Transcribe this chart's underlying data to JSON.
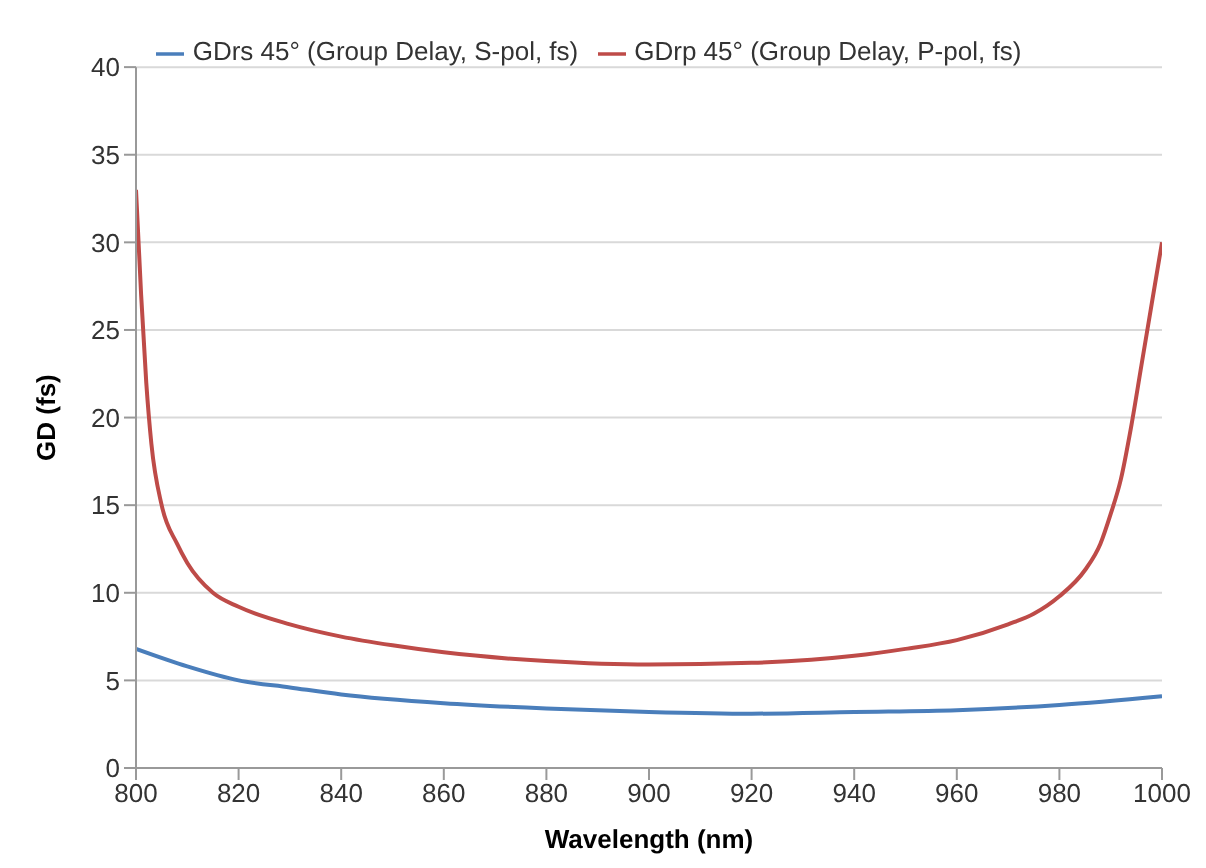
{
  "chart_data": {
    "type": "line",
    "xlabel": "Wavelength (nm)",
    "ylabel": "GD (fs)",
    "xlim": [
      800,
      1000
    ],
    "xticks": [
      800,
      820,
      840,
      860,
      880,
      900,
      920,
      940,
      960,
      980,
      1000
    ],
    "ylim": [
      0,
      40
    ],
    "yticks": [
      0,
      5,
      10,
      15,
      20,
      25,
      30,
      35,
      40
    ],
    "grid": "y",
    "legend": "top",
    "marker": "none",
    "series": [
      {
        "name": "GDrs 45° (Group Delay, S-pol, fs)",
        "color": "#4a7ebb",
        "x": [
          800,
          810,
          820,
          830,
          840,
          860,
          880,
          900,
          920,
          940,
          960,
          980,
          1000
        ],
        "values": [
          6.8,
          5.8,
          5.0,
          4.6,
          4.2,
          3.7,
          3.4,
          3.2,
          3.1,
          3.2,
          3.3,
          3.6,
          4.1
        ]
      },
      {
        "name": "GDrp 45° (Group Delay, P-pol, fs)",
        "color": "#be4b48",
        "x": [
          800,
          801,
          802,
          803,
          805,
          808,
          810,
          815,
          820,
          830,
          840,
          850,
          860,
          880,
          900,
          920,
          940,
          950,
          960,
          970,
          975,
          980,
          985,
          988,
          990,
          992,
          994,
          996,
          998,
          1000
        ],
        "values": [
          33,
          27,
          22,
          18.5,
          15,
          12.8,
          11.7,
          10,
          9.2,
          8.2,
          7.5,
          7.0,
          6.6,
          6.1,
          5.9,
          6.0,
          6.4,
          6.8,
          7.3,
          8.2,
          8.8,
          9.8,
          11.3,
          12.8,
          14.5,
          16.5,
          19.5,
          23,
          26.5,
          30
        ]
      }
    ]
  }
}
